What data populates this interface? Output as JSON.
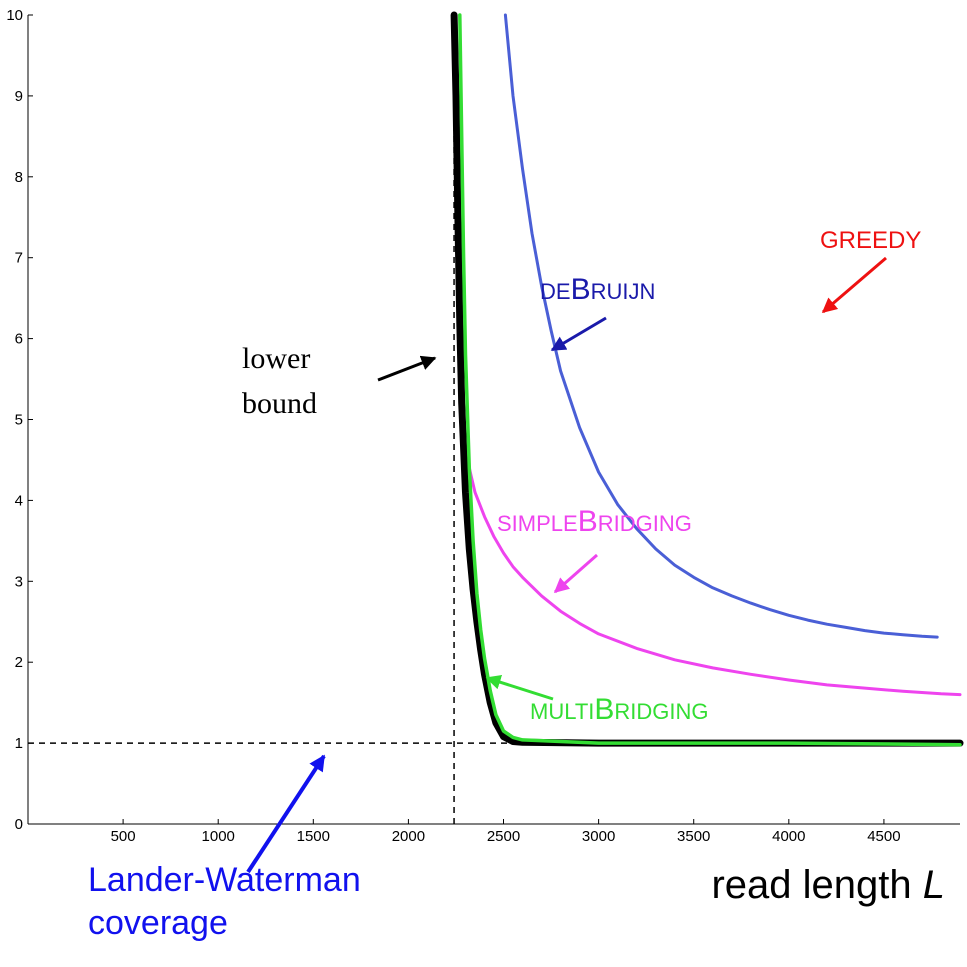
{
  "chart_data": {
    "type": "line",
    "xlabel": "read length",
    "xlabel_var": "L",
    "xlim": [
      0,
      4900
    ],
    "ylim": [
      0,
      10
    ],
    "x_ticks": [
      500,
      1000,
      1500,
      2000,
      2500,
      3000,
      3500,
      4000,
      4500
    ],
    "y_ticks": [
      0,
      1,
      2,
      3,
      4,
      5,
      6,
      7,
      8,
      9,
      10
    ],
    "grid": false,
    "reference_lines": [
      {
        "orientation": "horizontal",
        "value": 1,
        "style": "dashed"
      },
      {
        "orientation": "vertical",
        "value": 2240,
        "style": "dashed"
      }
    ],
    "series": [
      {
        "name": "deBruijn",
        "color": "#4a5fd6",
        "x": [
          2510,
          2550,
          2600,
          2650,
          2700,
          2750,
          2800,
          2900,
          3000,
          3100,
          3200,
          3300,
          3400,
          3500,
          3600,
          3700,
          3800,
          3900,
          4000,
          4100,
          4200,
          4300,
          4400,
          4500,
          4600,
          4700,
          4780
        ],
        "y": [
          10,
          9.0,
          8.1,
          7.3,
          6.65,
          6.1,
          5.6,
          4.9,
          4.35,
          3.95,
          3.65,
          3.4,
          3.2,
          3.05,
          2.92,
          2.82,
          2.73,
          2.65,
          2.58,
          2.52,
          2.47,
          2.43,
          2.39,
          2.36,
          2.34,
          2.32,
          2.31
        ]
      },
      {
        "name": "simpleBridging",
        "color": "#ee44ee",
        "x": [
          2320,
          2350,
          2400,
          2450,
          2500,
          2550,
          2600,
          2700,
          2800,
          2900,
          3000,
          3200,
          3400,
          3600,
          3800,
          4000,
          4200,
          4400,
          4600,
          4800,
          4900
        ],
        "y": [
          4.4,
          4.1,
          3.8,
          3.55,
          3.35,
          3.18,
          3.05,
          2.82,
          2.63,
          2.48,
          2.35,
          2.17,
          2.03,
          1.93,
          1.85,
          1.78,
          1.72,
          1.68,
          1.64,
          1.61,
          1.6
        ]
      },
      {
        "name": "lower bound",
        "color": "#000000",
        "x": [
          2240,
          2250,
          2260,
          2270,
          2280,
          2300,
          2320,
          2340,
          2360,
          2380,
          2400,
          2430,
          2460,
          2500,
          2550,
          2600,
          3000,
          4000,
          4900
        ],
        "y": [
          10,
          9.0,
          7.5,
          6.2,
          5.2,
          4.1,
          3.4,
          2.9,
          2.5,
          2.15,
          1.85,
          1.5,
          1.25,
          1.08,
          1.02,
          1.01,
          1.0,
          1.0,
          1.0
        ]
      },
      {
        "name": "multiBridging",
        "color": "#33dd33",
        "x": [
          2270,
          2280,
          2290,
          2300,
          2320,
          2340,
          2360,
          2380,
          2400,
          2430,
          2460,
          2500,
          2550,
          2600,
          3000,
          4000,
          4900
        ],
        "y": [
          10,
          8.5,
          7.0,
          5.8,
          4.4,
          3.5,
          2.85,
          2.4,
          2.05,
          1.65,
          1.35,
          1.15,
          1.07,
          1.04,
          1.0,
          1.0,
          0.98
        ]
      }
    ]
  },
  "annotations": {
    "greedy": "GREEDY",
    "debruijn_small1": "DE",
    "debruijn_big": "B",
    "debruijn_small2": "RUIJN",
    "simple_small1": "SIMPLE",
    "simple_big": "B",
    "simple_small2": "RIDGING",
    "multi_small1": "MULTI",
    "multi_big": "B",
    "multi_small2": "RIDGING",
    "lower_bound_line1": "lower",
    "lower_bound_line2": "bound",
    "lw_line1": "Lander-Waterman",
    "lw_line2": "coverage",
    "xlabel_text": "read length",
    "xlabel_var": "L"
  },
  "colors": {
    "greedy": "#ee1111",
    "debruijn_label": "#1a1aaa",
    "simple_label": "#ee44ee",
    "multi_label": "#33dd33",
    "lander": "#1111ee"
  }
}
